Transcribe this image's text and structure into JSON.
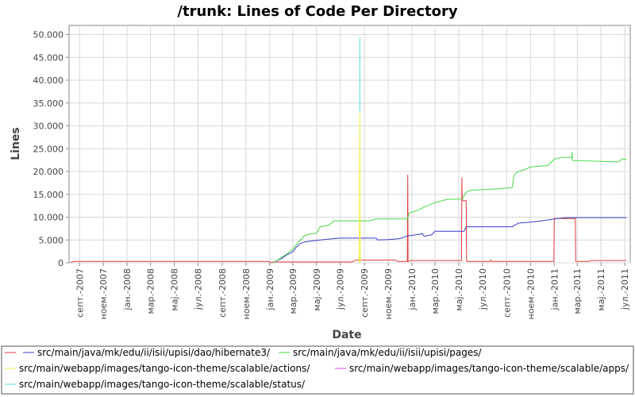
{
  "chart_data": {
    "type": "line",
    "title": "/trunk: Lines of Code Per Directory",
    "xlabel": "Date",
    "ylabel": "Lines",
    "x_range": [
      "2007-08-05",
      "2011-07-15"
    ],
    "ylim": [
      0,
      52000
    ],
    "y_ticks": [
      0,
      5000,
      10000,
      15000,
      20000,
      25000,
      30000,
      35000,
      40000,
      45000,
      50000
    ],
    "y_tick_labels": [
      "0",
      "5.000",
      "10.000",
      "15.000",
      "20.000",
      "25.000",
      "30.000",
      "35.000",
      "40.000",
      "45.000",
      "50.000"
    ],
    "x_ticks": [
      "2007-09-01",
      "2007-11-01",
      "2008-01-01",
      "2008-03-01",
      "2008-05-01",
      "2008-07-01",
      "2008-09-01",
      "2008-11-01",
      "2009-01-01",
      "2009-03-01",
      "2009-05-01",
      "2009-07-01",
      "2009-09-01",
      "2009-11-01",
      "2010-01-01",
      "2010-03-01",
      "2010-05-01",
      "2010-07-01",
      "2010-09-01",
      "2010-11-01",
      "2011-01-01",
      "2011-03-01",
      "2011-05-01",
      "2011-07-01"
    ],
    "x_tick_labels": [
      "септ.-2007",
      "ноем.-2007",
      "јан.-2008",
      "мар.-2008",
      "мај.-2008",
      "јул.-2008",
      "септ.-2008",
      "ноем.-2008",
      "јан.-2009",
      "мар.-2009",
      "мај.-2009",
      "јул.-2009",
      "септ.-2009",
      "ноем.-2009",
      "јан.-2010",
      "мар.-2010",
      "мај.-2010",
      "јул.-2010",
      "септ.-2010",
      "ноем.-2010",
      "јан.-2011",
      "мар.-2011",
      "мај.-2011",
      "јул.-2011"
    ],
    "grid": true,
    "legend_position": "bottom",
    "series": [
      {
        "name": "",
        "color": "#e03c3c",
        "points": [
          [
            "2007-08-08",
            0
          ],
          [
            "2007-08-12",
            200
          ],
          [
            "2007-08-20",
            300
          ],
          [
            "2008-12-30",
            300
          ],
          [
            "2009-01-05",
            0
          ],
          [
            "2009-01-12",
            200
          ],
          [
            "2009-08-01",
            200
          ],
          [
            "2009-08-10",
            600
          ],
          [
            "2009-11-20",
            600
          ],
          [
            "2009-11-25",
            300
          ],
          [
            "2009-12-20",
            300
          ],
          [
            "2009-12-21",
            19300
          ],
          [
            "2009-12-22",
            300
          ],
          [
            "2009-12-28",
            500
          ],
          [
            "2010-05-08",
            500
          ],
          [
            "2010-05-09",
            18700
          ],
          [
            "2010-05-10",
            13600
          ],
          [
            "2010-05-20",
            13600
          ],
          [
            "2010-05-21",
            300
          ],
          [
            "2010-07-20",
            300
          ],
          [
            "2010-07-22",
            600
          ],
          [
            "2010-07-24",
            300
          ],
          [
            "2010-12-31",
            300
          ],
          [
            "2011-01-01",
            9700
          ],
          [
            "2011-02-24",
            9700
          ],
          [
            "2011-02-25",
            300
          ],
          [
            "2011-04-01",
            300
          ],
          [
            "2011-04-05",
            500
          ],
          [
            "2011-07-05",
            500
          ]
        ]
      },
      {
        "name": "src/main/java/mk/edu/ii/isii/upisi/dao/hibernate3/",
        "color": "#3c3cc8",
        "points": [
          [
            "2009-01-10",
            0
          ],
          [
            "2009-01-20",
            500
          ],
          [
            "2009-02-01",
            1000
          ],
          [
            "2009-02-15",
            1800
          ],
          [
            "2009-03-01",
            2400
          ],
          [
            "2009-03-10",
            3400
          ],
          [
            "2009-03-20",
            4200
          ],
          [
            "2009-04-01",
            4600
          ],
          [
            "2009-05-01",
            4900
          ],
          [
            "2009-06-01",
            5200
          ],
          [
            "2009-07-01",
            5400
          ],
          [
            "2009-10-01",
            5400
          ],
          [
            "2009-10-05",
            5000
          ],
          [
            "2009-11-01",
            5100
          ],
          [
            "2009-12-01",
            5300
          ],
          [
            "2009-12-20",
            5900
          ],
          [
            "2010-01-10",
            6100
          ],
          [
            "2010-01-28",
            6400
          ],
          [
            "2010-02-01",
            5800
          ],
          [
            "2010-02-20",
            6100
          ],
          [
            "2010-03-01",
            6900
          ],
          [
            "2010-05-15",
            6900
          ],
          [
            "2010-05-20",
            7900
          ],
          [
            "2010-09-15",
            7900
          ],
          [
            "2010-10-01",
            8700
          ],
          [
            "2010-11-01",
            8900
          ],
          [
            "2010-12-01",
            9200
          ],
          [
            "2011-01-01",
            9600
          ],
          [
            "2011-02-01",
            9900
          ],
          [
            "2011-07-05",
            9900
          ]
        ]
      },
      {
        "name": "src/main/java/mk/edu/ii/isii/upisi/pages/",
        "color": "#46d846",
        "points": [
          [
            "2009-01-10",
            0
          ],
          [
            "2009-02-01",
            1200
          ],
          [
            "2009-02-15",
            2000
          ],
          [
            "2009-03-01",
            3000
          ],
          [
            "2009-03-15",
            4500
          ],
          [
            "2009-04-01",
            6000
          ],
          [
            "2009-04-15",
            6300
          ],
          [
            "2009-05-01",
            6500
          ],
          [
            "2009-05-10",
            7900
          ],
          [
            "2009-06-01",
            8200
          ],
          [
            "2009-06-15",
            9200
          ],
          [
            "2009-09-15",
            9200
          ],
          [
            "2009-10-01",
            9600
          ],
          [
            "2009-12-20",
            9600
          ],
          [
            "2009-12-25",
            10900
          ],
          [
            "2010-01-15",
            11500
          ],
          [
            "2010-02-01",
            12200
          ],
          [
            "2010-03-01",
            13200
          ],
          [
            "2010-04-01",
            13900
          ],
          [
            "2010-05-10",
            14000
          ],
          [
            "2010-05-20",
            15500
          ],
          [
            "2010-06-01",
            15900
          ],
          [
            "2010-08-15",
            16200
          ],
          [
            "2010-09-15",
            16500
          ],
          [
            "2010-09-20",
            19300
          ],
          [
            "2010-10-01",
            20000
          ],
          [
            "2010-10-20",
            20500
          ],
          [
            "2010-11-01",
            21000
          ],
          [
            "2010-12-15",
            21300
          ],
          [
            "2011-01-01",
            22700
          ],
          [
            "2011-01-20",
            23100
          ],
          [
            "2011-02-15",
            23100
          ],
          [
            "2011-02-16",
            24200
          ],
          [
            "2011-02-17",
            22400
          ],
          [
            "2011-06-15",
            22100
          ],
          [
            "2011-06-25",
            22800
          ],
          [
            "2011-07-05",
            22600
          ]
        ]
      },
      {
        "name": "src/main/webapp/images/tango-icon-theme/scalable/actions/",
        "color": "#f0f03c",
        "points": [
          [
            "2009-08-19",
            0
          ],
          [
            "2009-08-20",
            32800
          ],
          [
            "2009-08-21",
            0
          ]
        ]
      },
      {
        "name": "src/main/webapp/images/tango-icon-theme/scalable/apps/",
        "color": "#e646e6",
        "points": []
      },
      {
        "name": "src/main/webapp/images/tango-icon-theme/scalable/status/",
        "color": "#50dcdc",
        "points": [
          [
            "2009-08-20",
            33200
          ],
          [
            "2009-08-20",
            49300
          ]
        ]
      }
    ]
  }
}
